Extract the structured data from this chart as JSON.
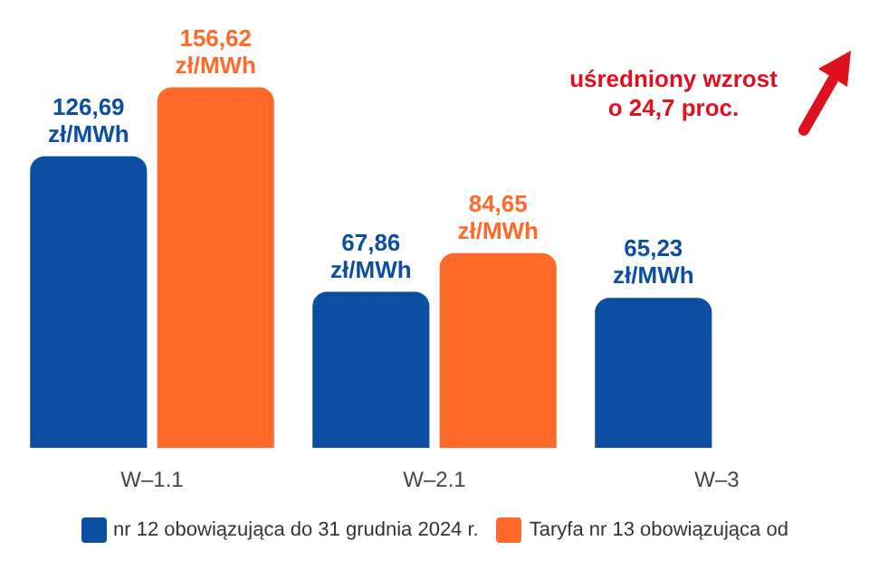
{
  "chart_data": {
    "type": "bar",
    "categories": [
      "W–1.1",
      "W–2.1",
      "W–3"
    ],
    "series": [
      {
        "name": "nr 12 obowiązująca do 31 grudnia 2024 r.",
        "color": "#0b4ea2",
        "values": [
          126.69,
          67.86,
          65.23
        ],
        "value_labels": [
          "126,69 zł/MWh",
          "67,86 zł/MWh",
          "65,23 zł/MWh"
        ]
      },
      {
        "name": "Taryfa nr 13 obowiązująca od",
        "color": "#ff6a2b",
        "values": [
          156.62,
          84.65,
          null
        ],
        "value_labels": [
          "156,62 zł/MWh",
          "84,65 zł/MWh",
          null
        ]
      }
    ],
    "legend": "bottom",
    "annotations": [
      "uśredniony wzrost o 24,7 proc."
    ]
  }
}
